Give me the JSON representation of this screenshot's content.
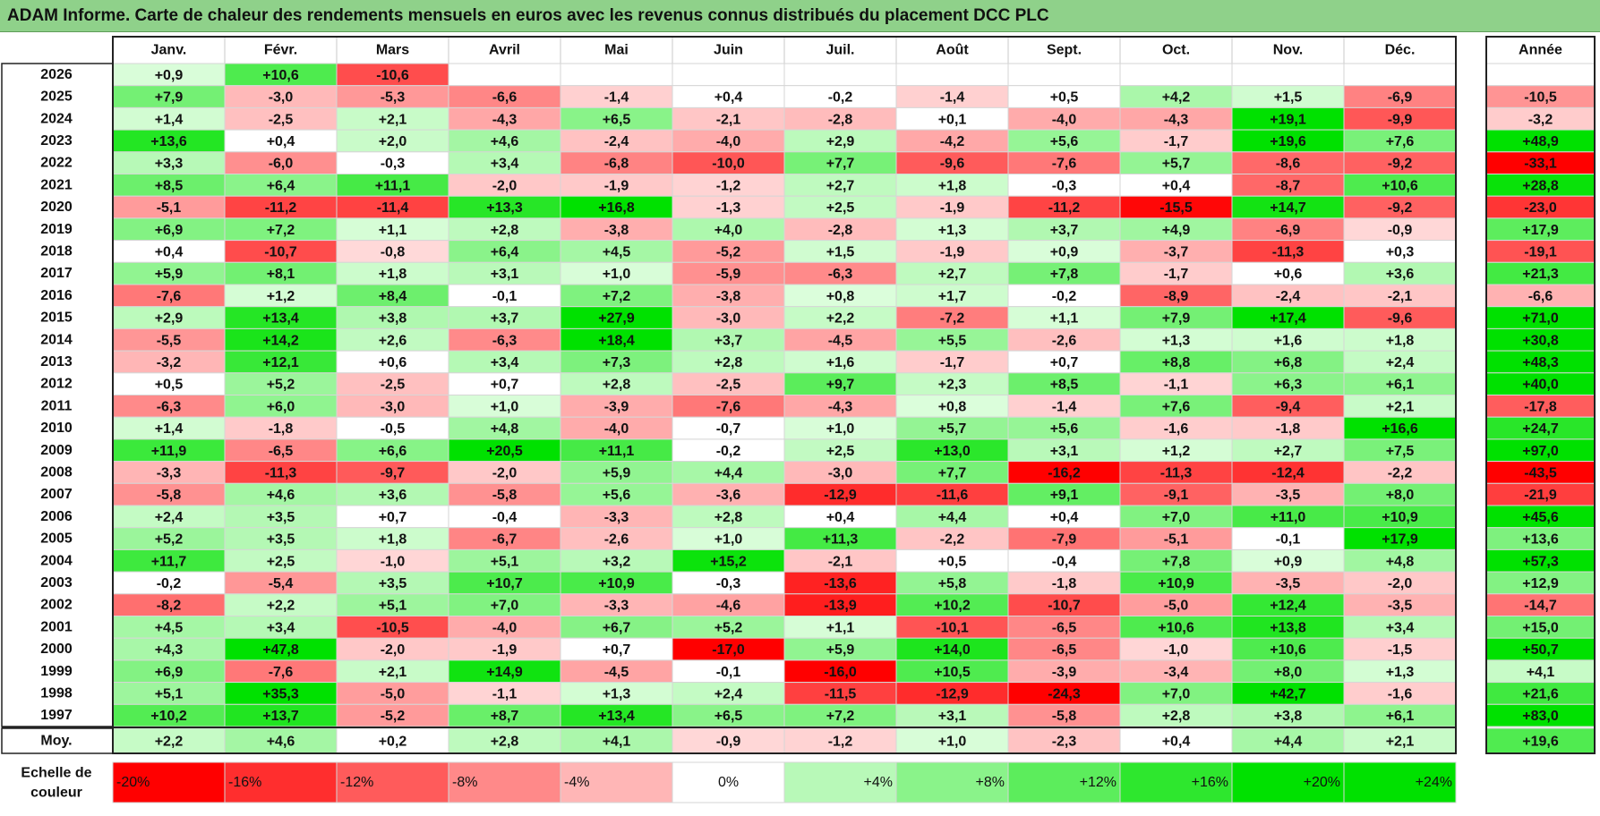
{
  "title": "ADAM Informe. Carte de chaleur des rendements mensuels en euros avec les revenus connus distribués du placement DCC PLC",
  "colors": {
    "title_bg": "#8fd18a",
    "strong_red": "#ff0000",
    "strong_green": "#00e000",
    "neutral": "#ffffff"
  },
  "chart_data": {
    "type": "heatmap",
    "title": "ADAM Informe. Carte de chaleur des rendements mensuels en euros avec les revenus connus distribués du placement DCC PLC",
    "columns": [
      "Janv.",
      "Févr.",
      "Mars",
      "Avril",
      "Mai",
      "Juin",
      "Juil.",
      "Août",
      "Sept.",
      "Oct.",
      "Nov.",
      "Déc."
    ],
    "annual_header": "Année",
    "rows": [
      {
        "year": "2026",
        "values": [
          0.9,
          10.6,
          -10.6,
          null,
          null,
          null,
          null,
          null,
          null,
          null,
          null,
          null
        ],
        "annual": null
      },
      {
        "year": "2025",
        "values": [
          7.9,
          -3.0,
          -5.3,
          -6.6,
          -1.4,
          0.4,
          -0.2,
          -1.4,
          0.5,
          4.2,
          1.5,
          -6.9
        ],
        "annual": -10.5
      },
      {
        "year": "2024",
        "values": [
          1.4,
          -2.5,
          2.1,
          -4.3,
          6.5,
          -2.1,
          -2.8,
          0.1,
          -4.0,
          -4.3,
          19.1,
          -9.9
        ],
        "annual": -3.2
      },
      {
        "year": "2023",
        "values": [
          13.6,
          0.4,
          2.0,
          4.6,
          -2.4,
          -4.0,
          2.9,
          -4.2,
          5.6,
          -1.7,
          19.6,
          7.6
        ],
        "annual": 48.9
      },
      {
        "year": "2022",
        "values": [
          3.3,
          -6.0,
          -0.3,
          3.4,
          -6.8,
          -10.0,
          7.7,
          -9.6,
          -7.6,
          5.7,
          -8.6,
          -9.2
        ],
        "annual": -33.1
      },
      {
        "year": "2021",
        "values": [
          8.5,
          6.4,
          11.1,
          -2.0,
          -1.9,
          -1.2,
          2.7,
          1.8,
          -0.3,
          0.4,
          -8.7,
          10.6
        ],
        "annual": 28.8
      },
      {
        "year": "2020",
        "values": [
          -5.1,
          -11.2,
          -11.4,
          13.3,
          16.8,
          -1.3,
          2.5,
          -1.9,
          -11.2,
          -15.5,
          14.7,
          -9.2
        ],
        "annual": -23.0
      },
      {
        "year": "2019",
        "values": [
          6.9,
          7.2,
          1.1,
          2.8,
          -3.8,
          4.0,
          -2.8,
          1.3,
          3.7,
          4.9,
          -6.9,
          -0.9
        ],
        "annual": 17.9
      },
      {
        "year": "2018",
        "values": [
          0.4,
          -10.7,
          -0.8,
          6.4,
          4.5,
          -5.2,
          1.5,
          -1.9,
          0.9,
          -3.7,
          -11.3,
          0.3
        ],
        "annual": -19.1
      },
      {
        "year": "2017",
        "values": [
          5.9,
          8.1,
          1.8,
          3.1,
          1.0,
          -5.9,
          -6.3,
          2.7,
          7.8,
          -1.7,
          0.6,
          3.6
        ],
        "annual": 21.3
      },
      {
        "year": "2016",
        "values": [
          -7.6,
          1.2,
          8.4,
          -0.1,
          7.2,
          -3.8,
          0.8,
          1.7,
          -0.2,
          -8.9,
          -2.4,
          -2.1
        ],
        "annual": -6.6
      },
      {
        "year": "2015",
        "values": [
          2.9,
          13.4,
          3.8,
          3.7,
          27.9,
          -3.0,
          2.2,
          -7.2,
          1.1,
          7.9,
          17.4,
          -9.6
        ],
        "annual": 71.0
      },
      {
        "year": "2014",
        "values": [
          -5.5,
          14.2,
          2.6,
          -6.3,
          18.4,
          3.7,
          -4.5,
          5.5,
          -2.6,
          1.3,
          1.6,
          1.8
        ],
        "annual": 30.8
      },
      {
        "year": "2013",
        "values": [
          -3.2,
          12.1,
          0.6,
          3.4,
          7.3,
          2.8,
          1.6,
          -1.7,
          0.7,
          8.8,
          6.8,
          2.4
        ],
        "annual": 48.3
      },
      {
        "year": "2012",
        "values": [
          0.5,
          5.2,
          -2.5,
          0.7,
          2.8,
          -2.5,
          9.7,
          2.3,
          8.5,
          -1.1,
          6.3,
          6.1
        ],
        "annual": 40.0
      },
      {
        "year": "2011",
        "values": [
          -6.3,
          6.0,
          -3.0,
          1.0,
          -3.9,
          -7.6,
          -4.3,
          0.8,
          -1.4,
          7.6,
          -9.4,
          2.1
        ],
        "annual": -17.8
      },
      {
        "year": "2010",
        "values": [
          1.4,
          -1.8,
          -0.5,
          4.8,
          -4.0,
          -0.7,
          1.0,
          5.7,
          5.6,
          -1.6,
          -1.8,
          16.6
        ],
        "annual": 24.7
      },
      {
        "year": "2009",
        "values": [
          11.9,
          -6.5,
          6.6,
          20.5,
          11.1,
          -0.2,
          2.5,
          13.0,
          3.1,
          1.2,
          2.7,
          7.5
        ],
        "annual": 97.0
      },
      {
        "year": "2008",
        "values": [
          -3.3,
          -11.3,
          -9.7,
          -2.0,
          5.9,
          4.4,
          -3.0,
          7.7,
          -16.2,
          -11.3,
          -12.4,
          -2.2
        ],
        "annual": -43.5
      },
      {
        "year": "2007",
        "values": [
          -5.8,
          4.6,
          3.6,
          -5.8,
          5.6,
          -3.6,
          -12.9,
          -11.6,
          9.1,
          -9.1,
          -3.5,
          8.0
        ],
        "annual": -21.9
      },
      {
        "year": "2006",
        "values": [
          2.4,
          3.5,
          0.7,
          -0.4,
          -3.3,
          2.8,
          0.4,
          4.4,
          0.4,
          7.0,
          11.0,
          10.9
        ],
        "annual": 45.6
      },
      {
        "year": "2005",
        "values": [
          5.2,
          3.5,
          1.8,
          -6.7,
          -2.6,
          1.0,
          11.3,
          -2.2,
          -7.9,
          -5.1,
          -0.1,
          17.9
        ],
        "annual": 13.6
      },
      {
        "year": "2004",
        "values": [
          11.7,
          2.5,
          -1.0,
          5.1,
          3.2,
          15.2,
          -2.1,
          0.5,
          -0.4,
          7.8,
          0.9,
          4.8
        ],
        "annual": 57.3
      },
      {
        "year": "2003",
        "values": [
          -0.2,
          -5.4,
          3.5,
          10.7,
          10.9,
          -0.3,
          -13.6,
          5.8,
          -1.8,
          10.9,
          -3.5,
          -2.0
        ],
        "annual": 12.9
      },
      {
        "year": "2002",
        "values": [
          -8.2,
          2.2,
          5.1,
          7.0,
          -3.3,
          -4.6,
          -13.9,
          10.2,
          -10.7,
          -5.0,
          12.4,
          -3.5
        ],
        "annual": -14.7
      },
      {
        "year": "2001",
        "values": [
          4.5,
          3.4,
          -10.5,
          -4.0,
          6.7,
          5.2,
          1.1,
          -10.1,
          -6.5,
          10.6,
          13.8,
          3.4
        ],
        "annual": 15.0
      },
      {
        "year": "2000",
        "values": [
          4.3,
          47.8,
          -2.0,
          -1.9,
          0.7,
          -17.0,
          5.9,
          14.0,
          -6.5,
          -1.0,
          10.6,
          -1.5
        ],
        "annual": 50.7
      },
      {
        "year": "1999",
        "values": [
          6.9,
          -7.6,
          2.1,
          14.9,
          -4.5,
          -0.1,
          -16.0,
          10.5,
          -3.9,
          -3.4,
          8.0,
          1.3
        ],
        "annual": 4.1
      },
      {
        "year": "1998",
        "values": [
          5.1,
          35.3,
          -5.0,
          -1.1,
          1.3,
          2.4,
          -11.5,
          -12.9,
          -24.3,
          7.0,
          42.7,
          -1.6
        ],
        "annual": 21.6
      },
      {
        "year": "1997",
        "values": [
          10.2,
          13.7,
          -5.2,
          8.7,
          13.4,
          6.5,
          7.2,
          3.1,
          -5.8,
          2.8,
          3.8,
          6.1
        ],
        "annual": 83.0
      }
    ],
    "average": {
      "label": "Moy.",
      "values": [
        2.2,
        4.6,
        0.2,
        2.8,
        4.1,
        -0.9,
        -1.2,
        1.0,
        -2.3,
        0.4,
        4.4,
        2.1
      ],
      "annual": 19.6
    },
    "scale": {
      "caption": "Echelle de couleur",
      "stops": [
        {
          "value": -20,
          "label": "-20%"
        },
        {
          "value": -16,
          "label": "-16%"
        },
        {
          "value": -12,
          "label": "-12%"
        },
        {
          "value": -8,
          "label": "-8%"
        },
        {
          "value": -4,
          "label": "-4%"
        },
        {
          "value": 0,
          "label": "0%"
        },
        {
          "value": 4,
          "label": "+4%"
        },
        {
          "value": 8,
          "label": "+8%"
        },
        {
          "value": 12,
          "label": "+12%"
        },
        {
          "value": 16,
          "label": "+16%"
        },
        {
          "value": 20,
          "label": "+20%"
        },
        {
          "value": 24,
          "label": "+24%"
        }
      ]
    }
  }
}
